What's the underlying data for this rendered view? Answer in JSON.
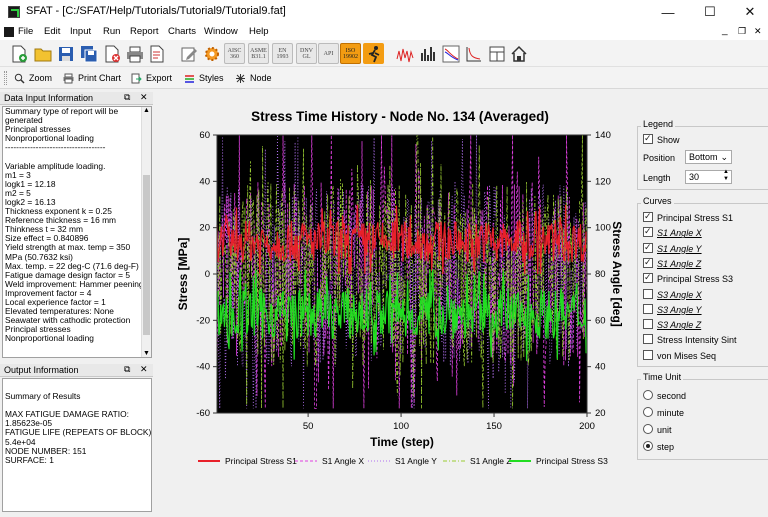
{
  "window": {
    "title": "SFAT - [C:/SFAT/Help/Tutorials/Tutorial9/Tutorial9.fat]"
  },
  "menu": [
    "File",
    "Edit",
    "Input",
    "Run",
    "Report",
    "Charts",
    "Window",
    "Help"
  ],
  "toolbar1": {
    "codes": [
      "AISC 360",
      "ASME B31.1",
      "EN 1993",
      "DNV GL",
      "API",
      "ISO 19902"
    ]
  },
  "toolbar2": {
    "zoom": "Zoom",
    "print": "Print Chart",
    "export": "Export",
    "styles": "Styles",
    "node": "Node"
  },
  "data_panel": {
    "title": "Data Input Information",
    "lines": [
      "Summary type of report will be",
      "generated",
      "Principal stresses",
      "Nonproportional loading",
      "------------------------------------",
      "",
      "Variable amplitude loading.",
      "m1 = 3",
      "logk1 = 12.18",
      "m2 = 5",
      "logk2 = 16.13",
      "Thickness exponent k = 0.25",
      "Reference thickness = 16 mm",
      "Thinkness t = 32 mm",
      "Size effect = 0.840896",
      "Yield strength at max. temp = 350",
      "MPa (50.7632 ksi)",
      "Max. temp. = 22 deg-C (71.6 deg-F)",
      "Fatigue damage design factor = 5",
      "Weld improvement: Hammer peening",
      "Improvement factor = 4",
      "Local experience factor = 1",
      "Elevated temperatures: None",
      "Seawater with cathodic protection",
      "Principal stresses",
      "Nonproportional loading"
    ]
  },
  "output_panel": {
    "title": "Output Information",
    "lines": [
      "",
      "  Summary of Results",
      "",
      "MAX FATIGUE DAMAGE RATIO:",
      "1.85623e-05",
      "FATIGUE LIFE (REPEATS OF BLOCK):",
      "5.4e+04",
      "NODE NUMBER: 151",
      "SURFACE: 1"
    ]
  },
  "chart_data": {
    "type": "line",
    "title": "Stress Time History - Node No. 134 (Averaged)",
    "xlabel": "Time (step)",
    "ylabel": "Stress [MPa]",
    "y2label": "Stress Angle [deg]",
    "xlim": [
      1,
      200
    ],
    "ylim": [
      -60,
      60
    ],
    "y2lim": [
      20,
      140
    ],
    "xticks": [
      "50",
      "100",
      "150",
      "200"
    ],
    "yticks": [
      "60",
      "40",
      "20",
      "0",
      "-20",
      "-40",
      "-60"
    ],
    "y2ticks": [
      "140",
      "120",
      "100",
      "80",
      "60",
      "40",
      "20"
    ],
    "background": "#000000",
    "legend_position": "bottom",
    "series": [
      {
        "name": "Principal Stress S1",
        "axis": "left",
        "color": "#e8202a",
        "style": "solid",
        "mean": 14,
        "amp": 9,
        "min": 0,
        "max": 38
      },
      {
        "name": "S1 Angle X",
        "axis": "right",
        "color": "#e040e0",
        "style": "dashed",
        "mean": 80,
        "amp": 40,
        "min": 22,
        "max": 140
      },
      {
        "name": "S1 Angle Y",
        "axis": "right",
        "color": "#b070f0",
        "style": "dotted",
        "mean": 80,
        "amp": 40,
        "min": 22,
        "max": 140
      },
      {
        "name": "S1 Angle Z",
        "axis": "right",
        "color": "#9acd32",
        "style": "dashdot",
        "mean": 80,
        "amp": 40,
        "min": 22,
        "max": 140
      },
      {
        "name": "Principal Stress S3",
        "axis": "left",
        "color": "#22dd22",
        "style": "solid",
        "mean": -17,
        "amp": 11,
        "min": -46,
        "max": 2
      }
    ]
  },
  "legend_group": {
    "title": "Legend",
    "show_label": "Show",
    "show_checked": true,
    "position_label": "Position",
    "position_value": "Bottom",
    "length_label": "Length",
    "length_value": "30"
  },
  "curves_group": {
    "title": "Curves",
    "items": [
      {
        "label": "Principal Stress S1",
        "checked": true,
        "style": "normal"
      },
      {
        "label": "S1 Angle X",
        "checked": true,
        "style": "italic"
      },
      {
        "label": "S1 Angle Y",
        "checked": true,
        "style": "italic"
      },
      {
        "label": "S1 Angle Z",
        "checked": true,
        "style": "italic"
      },
      {
        "label": "Principal Stress S3",
        "checked": true,
        "style": "normal"
      },
      {
        "label": "S3 Angle X",
        "checked": false,
        "style": "italic"
      },
      {
        "label": "S3 Angle Y",
        "checked": false,
        "style": "italic"
      },
      {
        "label": "S3 Angle Z",
        "checked": false,
        "style": "italic"
      },
      {
        "label": "Stress Intensity Sint",
        "checked": false,
        "style": "normal"
      },
      {
        "label": "von Mises Seq",
        "checked": false,
        "style": "normal"
      }
    ]
  },
  "timeunit_group": {
    "title": "Time Unit",
    "options": [
      {
        "label": "second",
        "selected": false
      },
      {
        "label": "minute",
        "selected": false
      },
      {
        "label": "unit",
        "selected": false
      },
      {
        "label": "step",
        "selected": true
      }
    ]
  }
}
